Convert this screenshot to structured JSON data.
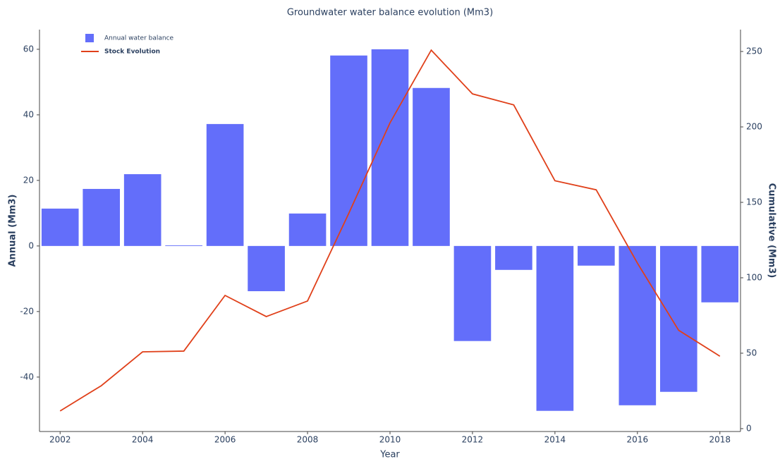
{
  "chart_data": {
    "type": "bar_line",
    "title": "Groundwater water balance evolution (Mm3)",
    "xlabel": "Year",
    "ylabel": "Annual (Mm3)",
    "y2label": "Cumulative (Mm3)",
    "x": [
      2002,
      2003,
      2004,
      2005,
      2006,
      2007,
      2008,
      2009,
      2010,
      2011,
      2012,
      2013,
      2014,
      2015,
      2016,
      2017,
      2018
    ],
    "series": [
      {
        "name": "Annual water balance",
        "type": "bar",
        "color": "#636efa",
        "values": [
          11.4,
          17.4,
          21.9,
          0.2,
          37.2,
          -13.8,
          9.9,
          58.1,
          60,
          48.2,
          -29.0,
          -7.3,
          -50.3,
          -6.0,
          -48.6,
          -44.5,
          -17.2
        ]
      },
      {
        "name": "Stock Evolution",
        "type": "line",
        "color": "#e0401a",
        "axis": "y2",
        "values": [
          11.7,
          28.5,
          50.9,
          51.4,
          88.3,
          74.3,
          84.6,
          142.7,
          202.7,
          250.9,
          221.9,
          214.6,
          164.3,
          158.3,
          109.7,
          65.2,
          48.0
        ]
      }
    ],
    "xlim": [
      2001.5,
      2018.5
    ],
    "xticks": [
      2002,
      2004,
      2006,
      2008,
      2010,
      2012,
      2014,
      2016,
      2018
    ],
    "ylim": [
      -56.6,
      66
    ],
    "yticks": [
      -40,
      -20,
      0,
      20,
      40,
      60
    ],
    "y2lim": [
      -1.9,
      264.5
    ],
    "y2ticks": [
      0,
      50,
      100,
      150,
      200,
      250
    ],
    "grid": false,
    "legend": "upper left"
  }
}
